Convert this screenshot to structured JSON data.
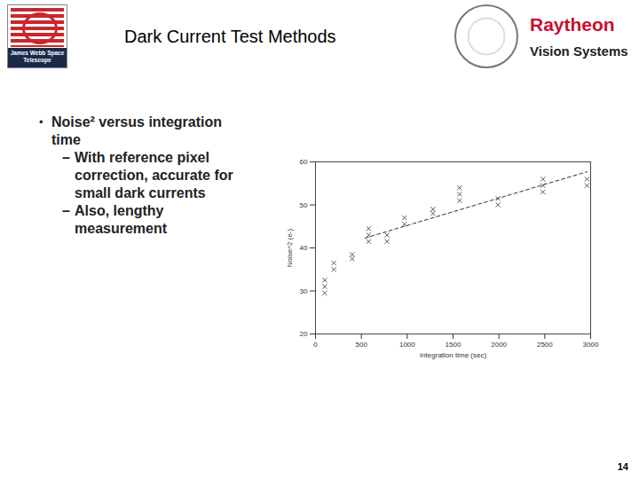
{
  "slide": {
    "title": "Dark Current Test Methods",
    "logo_text": "James Webb Space Telescope",
    "company": "Raytheon",
    "division": "Vision Systems",
    "bullets": [
      {
        "text": "Noise² versus integration time",
        "sub": [
          "With reference pixel correction, accurate for small dark currents",
          "Also, lengthy measurement"
        ]
      }
    ],
    "page_number": "14"
  },
  "chart_data": {
    "type": "scatter",
    "x_label": "Integration time (sec)",
    "y_label": "Noise^2 (e-)",
    "xlim": [
      0,
      3000
    ],
    "xticks": [
      0,
      500,
      1000,
      1500,
      2000,
      2500,
      3000
    ],
    "ylim": [
      20,
      60
    ],
    "yticks": [
      20,
      30,
      40,
      50,
      60
    ],
    "grid": false,
    "series": [
      {
        "type": "scatter",
        "marker": "x",
        "color": "#333333",
        "x": [
          100,
          100,
          100,
          200,
          200,
          400,
          400,
          580,
          580,
          580,
          780,
          780,
          970,
          970,
          1280,
          1280,
          1570,
          1570,
          1570,
          1990,
          1990,
          2480,
          2480,
          2480,
          2960,
          2960
        ],
        "values": [
          29.5,
          31,
          32.5,
          35,
          36.5,
          37.5,
          38.5,
          41.5,
          43,
          44.5,
          41.5,
          43,
          45.5,
          47,
          48,
          49,
          51,
          52.5,
          54,
          50,
          51.5,
          53,
          54.5,
          56,
          54.5,
          56
        ]
      },
      {
        "type": "line",
        "line_style": "dashed",
        "color": "#333333",
        "x": [
          540,
          2960
        ],
        "values": [
          42.3,
          57.7
        ]
      }
    ]
  }
}
